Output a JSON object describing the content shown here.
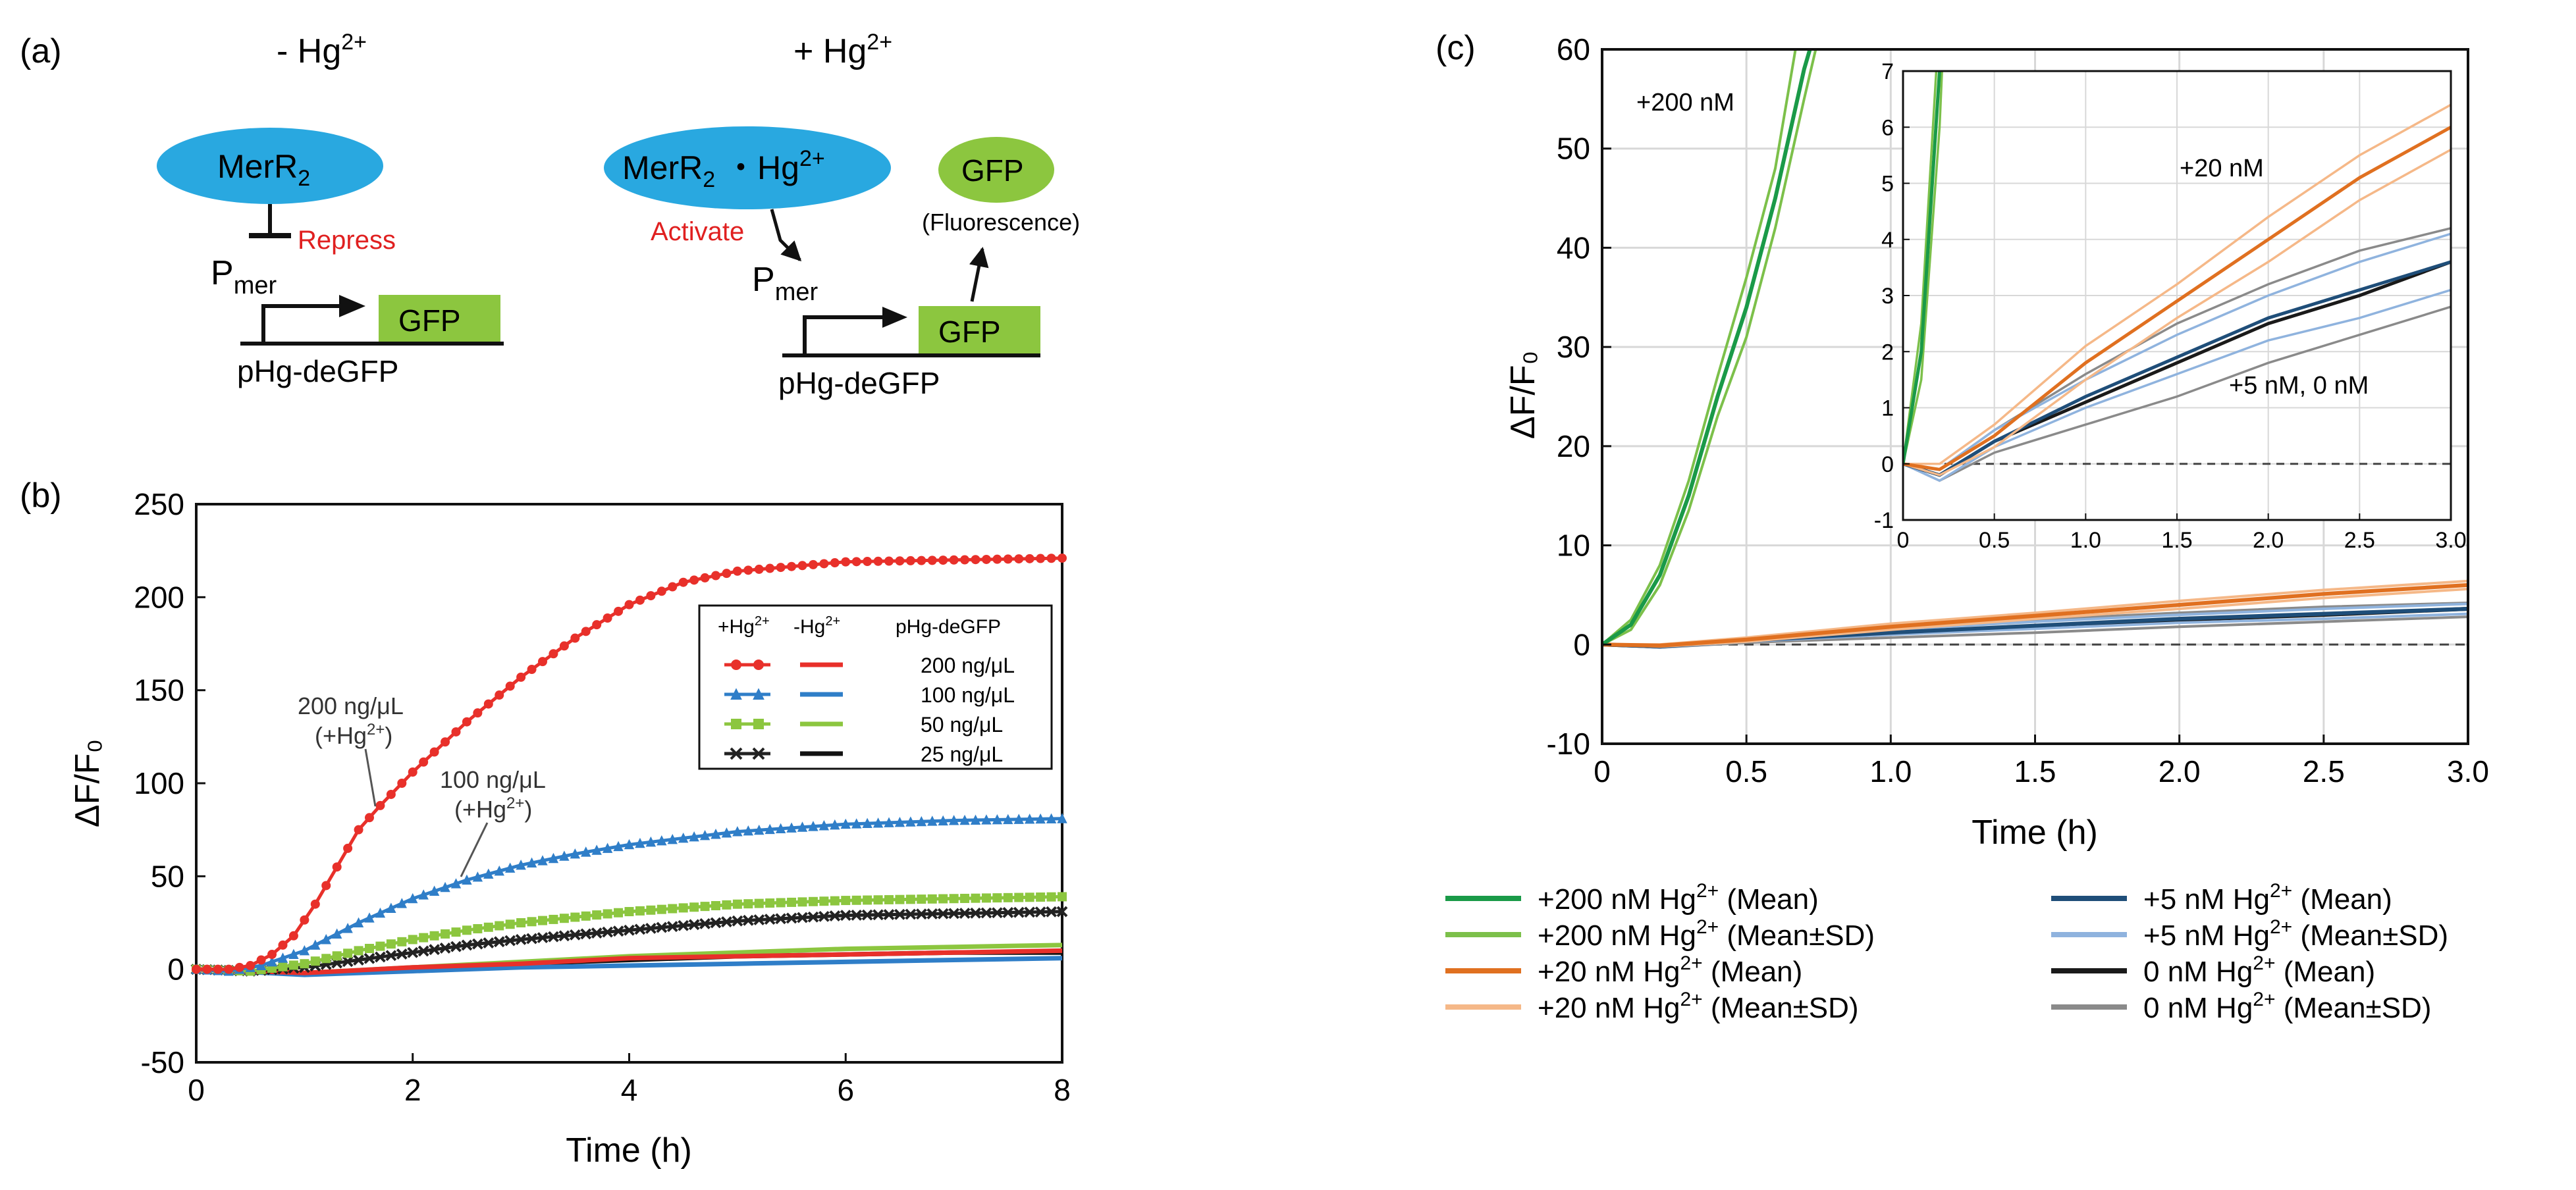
{
  "panel_a": {
    "label": "(a)",
    "left_title": "- Hg",
    "left_title_sup": "2+",
    "right_title": "+ Hg",
    "right_title_sup": "2+",
    "merr_left": "MerR",
    "merr_left_sub": "2",
    "repress": "Repress",
    "pmer_left": "P",
    "pmer_left_sub": "mer",
    "gfp_gene_left": "GFP",
    "plasmid_left": "pHg-deGFP",
    "merr_right": "MerR",
    "merr_right_sub": "2",
    "merr_right_rest": " ・Hg",
    "merr_right_sup": "2+",
    "gfp_protein": "GFP",
    "fluorescence": "(Fluorescence)",
    "activate": "Activate",
    "pmer_right": "P",
    "pmer_right_sub": "mer",
    "gfp_gene_right": "GFP",
    "plasmid_right": "pHg-deGFP",
    "colors": {
      "merr": "#29a8e0",
      "gfp": "#8cc63f",
      "repress": "#e02020",
      "activate": "#e02020"
    }
  },
  "chart_data": [
    {
      "panel": "(b)",
      "type": "line",
      "title": "",
      "xlabel": "Time (h)",
      "ylabel": "ΔF/F₀",
      "xlim": [
        0,
        8
      ],
      "ylim": [
        -50,
        250
      ],
      "xticks": [
        "0",
        "2",
        "4",
        "6",
        "8"
      ],
      "yticks": [
        "-50",
        "0",
        "50",
        "100",
        "150",
        "200",
        "250"
      ],
      "grid": false,
      "legend_position": "center-right",
      "legend_header": {
        "plus": "+Hg",
        "plus_sup": "2+",
        "minus": "-Hg",
        "minus_sup": "2+",
        "plasmid": "pHg-deGFP"
      },
      "legend_conc": [
        "200 ng/μL",
        "100 ng/μL",
        "50 ng/μL",
        "25 ng/μL"
      ],
      "annotations": [
        {
          "line1": "200 ng/μL",
          "line2": "(+Hg",
          "sup": "2+",
          "close": ")"
        },
        {
          "line1": "100 ng/μL",
          "line2": "(+Hg",
          "sup": "2+",
          "close": ")"
        }
      ],
      "series": [
        {
          "conc": "200 ng/μL",
          "hg": "+",
          "color": "#e8302a",
          "marker": "circle",
          "points": [
            [
              0,
              0
            ],
            [
              0.3,
              0
            ],
            [
              0.5,
              2
            ],
            [
              0.7,
              8
            ],
            [
              0.9,
              18
            ],
            [
              1.1,
              35
            ],
            [
              1.3,
              55
            ],
            [
              1.5,
              75
            ],
            [
              1.7,
              88
            ],
            [
              2,
              106
            ],
            [
              2.5,
              133
            ],
            [
              3,
              157
            ],
            [
              3.5,
              178
            ],
            [
              4,
              196
            ],
            [
              4.5,
              208
            ],
            [
              5,
              214
            ],
            [
              6,
              219
            ],
            [
              7,
              220
            ],
            [
              8,
              221
            ]
          ]
        },
        {
          "conc": "100 ng/μL",
          "hg": "+",
          "color": "#2f7ec8",
          "marker": "triangle",
          "points": [
            [
              0,
              0
            ],
            [
              0.3,
              -1
            ],
            [
              0.6,
              2
            ],
            [
              1,
              10
            ],
            [
              1.5,
              25
            ],
            [
              2,
              38
            ],
            [
              2.5,
              48
            ],
            [
              3,
              56
            ],
            [
              3.5,
              62
            ],
            [
              4,
              67
            ],
            [
              5,
              74
            ],
            [
              6,
              78
            ],
            [
              7,
              80
            ],
            [
              8,
              81
            ]
          ]
        },
        {
          "conc": "50 ng/μL",
          "hg": "+",
          "color": "#8cc63f",
          "marker": "square",
          "points": [
            [
              0,
              0
            ],
            [
              0.5,
              -1
            ],
            [
              1,
              3
            ],
            [
              1.5,
              10
            ],
            [
              2,
              16
            ],
            [
              2.5,
              21
            ],
            [
              3,
              25
            ],
            [
              4,
              31
            ],
            [
              5,
              35
            ],
            [
              6,
              37
            ],
            [
              7,
              38
            ],
            [
              8,
              39
            ]
          ]
        },
        {
          "conc": "25 ng/μL",
          "hg": "+",
          "color": "#222222",
          "marker": "cross",
          "points": [
            [
              0,
              0
            ],
            [
              0.5,
              -1
            ],
            [
              1,
              1
            ],
            [
              1.5,
              5
            ],
            [
              2,
              9
            ],
            [
              2.5,
              13
            ],
            [
              3,
              16
            ],
            [
              4,
              21
            ],
            [
              5,
              26
            ],
            [
              6,
              29
            ],
            [
              7,
              30
            ],
            [
              8,
              31
            ]
          ]
        },
        {
          "conc": "200 ng/μL",
          "hg": "-",
          "color": "#e8302a",
          "marker": "none",
          "points": [
            [
              0,
              0
            ],
            [
              1,
              -2
            ],
            [
              2,
              1
            ],
            [
              3,
              3
            ],
            [
              4,
              6
            ],
            [
              5,
              7
            ],
            [
              6,
              8
            ],
            [
              7,
              9
            ],
            [
              8,
              10
            ]
          ]
        },
        {
          "conc": "100 ng/μL",
          "hg": "-",
          "color": "#2f7ec8",
          "marker": "none",
          "points": [
            [
              0,
              0
            ],
            [
              1,
              -3
            ],
            [
              2,
              -1
            ],
            [
              3,
              1
            ],
            [
              4,
              2
            ],
            [
              5,
              3
            ],
            [
              6,
              4
            ],
            [
              7,
              5
            ],
            [
              8,
              6
            ]
          ]
        },
        {
          "conc": "50 ng/μL",
          "hg": "-",
          "color": "#8cc63f",
          "marker": "none",
          "points": [
            [
              0,
              0
            ],
            [
              1,
              -2
            ],
            [
              2,
              1
            ],
            [
              3,
              4
            ],
            [
              4,
              7
            ],
            [
              5,
              9
            ],
            [
              6,
              11
            ],
            [
              7,
              12
            ],
            [
              8,
              13
            ]
          ]
        },
        {
          "conc": "25 ng/μL",
          "hg": "-",
          "color": "#111111",
          "marker": "none",
          "points": [
            [
              0,
              0
            ],
            [
              1,
              -2
            ],
            [
              2,
              0
            ],
            [
              3,
              3
            ],
            [
              4,
              5
            ],
            [
              5,
              7
            ],
            [
              6,
              8
            ],
            [
              7,
              9
            ],
            [
              8,
              9
            ]
          ]
        }
      ]
    },
    {
      "panel": "(c)",
      "type": "line",
      "title": "",
      "xlabel": "Time (h)",
      "ylabel": "ΔF/F₀",
      "xlim": [
        0,
        3
      ],
      "ylim": [
        -10,
        60
      ],
      "xticks": [
        "0",
        "0.5",
        "1.0",
        "1.5",
        "2.0",
        "2.5",
        "3.0"
      ],
      "yticks": [
        "-10",
        "0",
        "10",
        "20",
        "30",
        "40",
        "50",
        "60"
      ],
      "grid": true,
      "zero_line": "dashed",
      "annotations": [
        "+200 nM"
      ],
      "series": [
        {
          "name": "+200 nM Hg2+ (Mean)",
          "color": "#1a9a48",
          "points": [
            [
              0,
              0
            ],
            [
              0.1,
              2
            ],
            [
              0.2,
              7
            ],
            [
              0.3,
              15
            ],
            [
              0.4,
              25
            ],
            [
              0.5,
              34
            ],
            [
              0.6,
              45
            ],
            [
              0.7,
              58
            ],
            [
              0.72,
              60
            ]
          ]
        },
        {
          "name": "+200 nM Hg2+ (Mean+SD)",
          "color": "#7cc04a",
          "points": [
            [
              0,
              0
            ],
            [
              0.1,
              2.5
            ],
            [
              0.2,
              8
            ],
            [
              0.3,
              16.5
            ],
            [
              0.4,
              27
            ],
            [
              0.5,
              37
            ],
            [
              0.6,
              48
            ],
            [
              0.67,
              60
            ]
          ]
        },
        {
          "name": "+200 nM Hg2+ (Mean-SD)",
          "color": "#7cc04a",
          "points": [
            [
              0,
              0
            ],
            [
              0.1,
              1.5
            ],
            [
              0.2,
              6
            ],
            [
              0.3,
              13.5
            ],
            [
              0.4,
              23
            ],
            [
              0.5,
              31
            ],
            [
              0.6,
              42
            ],
            [
              0.7,
              55
            ],
            [
              0.74,
              60
            ]
          ]
        },
        {
          "name": "+20 nM Hg2+ (Mean)",
          "color": "#e07020",
          "points": [
            [
              0,
              0
            ],
            [
              0.2,
              -0.1
            ],
            [
              0.5,
              0.5
            ],
            [
              1,
              1.8
            ],
            [
              1.5,
              2.9
            ],
            [
              2,
              4
            ],
            [
              2.5,
              5.1
            ],
            [
              3,
              6
            ]
          ]
        },
        {
          "name": "+20 nM Hg2+ (Mean+SD)",
          "color": "#f5b888",
          "points": [
            [
              0,
              0
            ],
            [
              0.2,
              0
            ],
            [
              0.5,
              0.7
            ],
            [
              1,
              2.1
            ],
            [
              1.5,
              3.2
            ],
            [
              2,
              4.4
            ],
            [
              2.5,
              5.5
            ],
            [
              3,
              6.4
            ]
          ]
        },
        {
          "name": "+20 nM Hg2+ (Mean-SD)",
          "color": "#f5b888",
          "points": [
            [
              0,
              0
            ],
            [
              0.2,
              -0.2
            ],
            [
              0.5,
              0.3
            ],
            [
              1,
              1.5
            ],
            [
              1.5,
              2.6
            ],
            [
              2,
              3.6
            ],
            [
              2.5,
              4.7
            ],
            [
              3,
              5.6
            ]
          ]
        },
        {
          "name": "+5 nM Hg2+ (Mean)",
          "color": "#1f4e79",
          "points": [
            [
              0,
              0
            ],
            [
              0.2,
              -0.2
            ],
            [
              0.5,
              0.4
            ],
            [
              1,
              1.2
            ],
            [
              1.5,
              1.9
            ],
            [
              2,
              2.6
            ],
            [
              2.5,
              3.1
            ],
            [
              3,
              3.6
            ]
          ]
        },
        {
          "name": "+5 nM Hg2+ (Mean+SD)",
          "color": "#8fb3de",
          "points": [
            [
              0,
              0
            ],
            [
              0.2,
              -0.1
            ],
            [
              0.5,
              0.6
            ],
            [
              1,
              1.5
            ],
            [
              1.5,
              2.3
            ],
            [
              2,
              3
            ],
            [
              2.5,
              3.6
            ],
            [
              3,
              4.1
            ]
          ]
        },
        {
          "name": "+5 nM Hg2+ (Mean-SD)",
          "color": "#8fb3de",
          "points": [
            [
              0,
              0
            ],
            [
              0.2,
              -0.3
            ],
            [
              0.5,
              0.3
            ],
            [
              1,
              1
            ],
            [
              1.5,
              1.6
            ],
            [
              2,
              2.2
            ],
            [
              2.5,
              2.6
            ],
            [
              3,
              3.1
            ]
          ]
        },
        {
          "name": "0 nM Hg2+ (Mean)",
          "color": "#1a1a1a",
          "points": [
            [
              0,
              0
            ],
            [
              0.2,
              -0.2
            ],
            [
              0.5,
              0.4
            ],
            [
              1,
              1.1
            ],
            [
              1.5,
              1.8
            ],
            [
              2,
              2.5
            ],
            [
              2.5,
              3
            ],
            [
              3,
              3.6
            ]
          ]
        },
        {
          "name": "0 nM Hg2+ (Mean+SD)",
          "color": "#8a8a8a",
          "points": [
            [
              0,
              0
            ],
            [
              0.2,
              -0.1
            ],
            [
              0.5,
              0.6
            ],
            [
              1,
              1.6
            ],
            [
              1.5,
              2.5
            ],
            [
              2,
              3.2
            ],
            [
              2.5,
              3.8
            ],
            [
              3,
              4.2
            ]
          ]
        },
        {
          "name": "0 nM Hg2+ (Mean-SD)",
          "color": "#8a8a8a",
          "points": [
            [
              0,
              0
            ],
            [
              0.2,
              -0.3
            ],
            [
              0.5,
              0.2
            ],
            [
              1,
              0.7
            ],
            [
              1.5,
              1.2
            ],
            [
              2,
              1.8
            ],
            [
              2.5,
              2.3
            ],
            [
              3,
              2.8
            ]
          ]
        }
      ],
      "inset": {
        "xlim": [
          0,
          3
        ],
        "ylim": [
          -1,
          7
        ],
        "xticks": [
          "0",
          "0.5",
          "1.0",
          "1.5",
          "2.0",
          "2.5",
          "3.0"
        ],
        "yticks": [
          "-1",
          "0",
          "1",
          "2",
          "3",
          "4",
          "5",
          "6",
          "7"
        ],
        "annotations": [
          "+20 nM",
          "+5 nM, 0 nM"
        ]
      },
      "legend": [
        {
          "text": "+200 nM Hg",
          "sup": "2+",
          "suffix": " (Mean)",
          "color": "#1a9a48"
        },
        {
          "text": "+200 nM Hg",
          "sup": "2+",
          "suffix": " (Mean±SD)",
          "color": "#7cc04a"
        },
        {
          "text": "+20 nM Hg",
          "sup": "2+",
          "suffix": " (Mean)",
          "color": "#e07020"
        },
        {
          "text": "+20 nM Hg",
          "sup": "2+",
          "suffix": " (Mean±SD)",
          "color": "#f5b888"
        },
        {
          "text": "+5 nM Hg",
          "sup": "2+",
          "suffix": " (Mean)",
          "color": "#1f4e79"
        },
        {
          "text": "+5 nM Hg",
          "sup": "2+",
          "suffix": " (Mean±SD)",
          "color": "#8fb3de"
        },
        {
          "text": "0 nM Hg",
          "sup": "2+",
          "suffix": " (Mean)",
          "color": "#1a1a1a"
        },
        {
          "text": "0 nM Hg",
          "sup": "2+",
          "suffix": " (Mean±SD)",
          "color": "#8a8a8a"
        }
      ]
    }
  ]
}
